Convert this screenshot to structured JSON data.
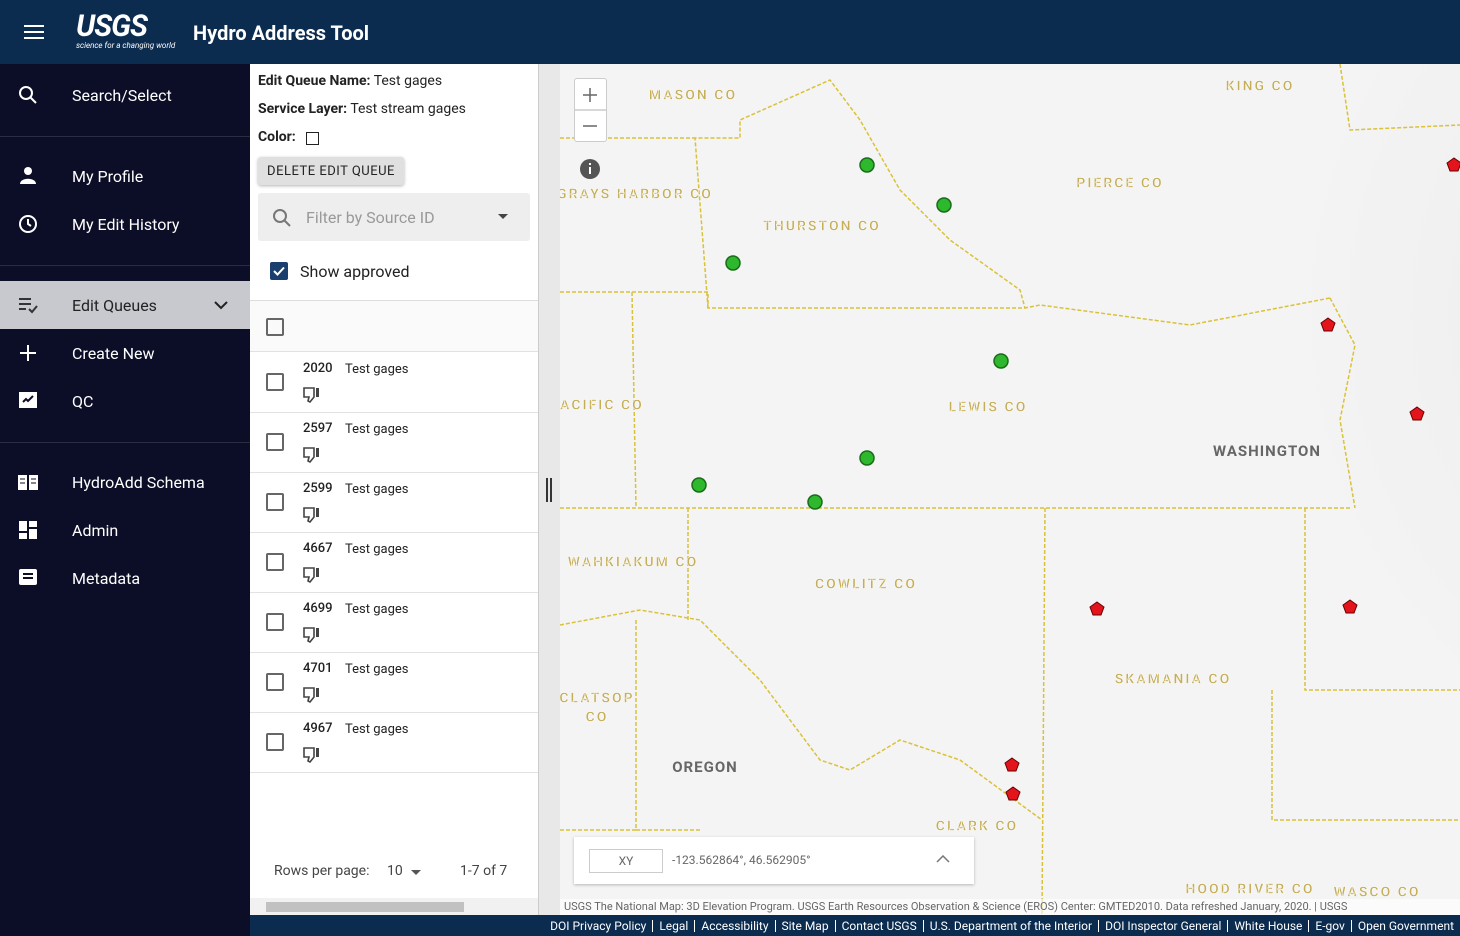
{
  "header": {
    "logo": "USGS",
    "tagline": "science for a changing world",
    "title": "Hydro Address Tool"
  },
  "nav": [
    {
      "label": "Search/Select"
    },
    {
      "label": "My Profile"
    },
    {
      "label": "My Edit History"
    },
    {
      "label": "Edit Queues"
    },
    {
      "label": "Create New"
    },
    {
      "label": "QC"
    },
    {
      "label": "HydroAdd Schema"
    },
    {
      "label": "Admin"
    },
    {
      "label": "Metadata"
    }
  ],
  "panel": {
    "queue_name_label": "Edit Queue Name:",
    "queue_name": "Test gages",
    "service_layer_label": "Service Layer:",
    "service_layer": "Test stream gages",
    "color_label": "Color:",
    "delete_button": "DELETE EDIT QUEUE",
    "filter_placeholder": "Filter by Source ID",
    "show_approved": "Show approved",
    "rows": [
      {
        "id": "2020",
        "name": "Test gages"
      },
      {
        "id": "2597",
        "name": "Test gages"
      },
      {
        "id": "2599",
        "name": "Test gages"
      },
      {
        "id": "4667",
        "name": "Test gages"
      },
      {
        "id": "4699",
        "name": "Test gages"
      },
      {
        "id": "4701",
        "name": "Test gages"
      },
      {
        "id": "4967",
        "name": "Test gages"
      }
    ],
    "rows_per_page_label": "Rows per page:",
    "rows_per_page": "10",
    "range": "1-7 of 7"
  },
  "map": {
    "labels": [
      "MASON CO",
      "KING CO",
      "GRAYS HARBOR CO",
      "THURSTON CO",
      "PIERCE CO",
      "PACIFIC CO",
      "LEWIS CO",
      "WASHINGTON",
      "WAHKIAKUM CO",
      "COWLITZ CO",
      "SKAMANIA CO",
      "CLATSOP",
      "CO",
      "OREGON",
      "CLARK CO",
      "HOOD RIVER CO",
      "WASCO CO"
    ],
    "coord_mode": "XY",
    "coordinates": "-123.562864°, 46.562905°",
    "attribution": "USGS The National Map: 3D Elevation Program. USGS Earth Resources Observation & Science (EROS) Center: GMTED2010. Data refreshed January, 2020. | USGS",
    "footer_links": [
      "DOI Privacy Policy",
      "Legal",
      "Accessibility",
      "Site Map",
      "Contact USGS",
      "U.S. Department of the Interior",
      "DOI Inspector General",
      "White House",
      "E-gov",
      "Open Government"
    ]
  }
}
